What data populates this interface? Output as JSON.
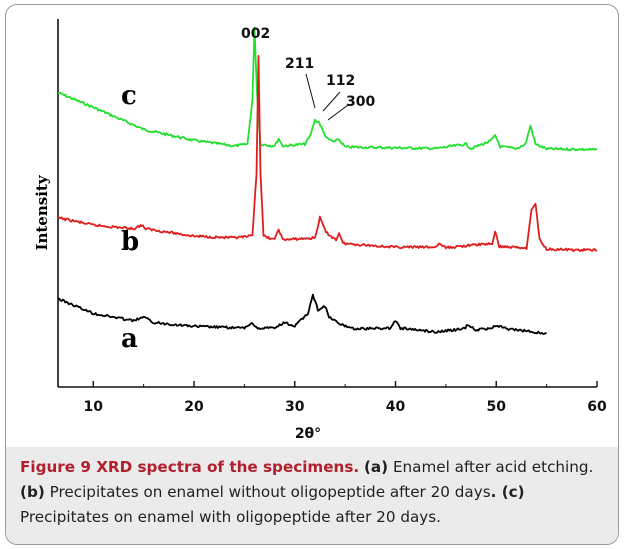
{
  "chart_data": {
    "type": "line",
    "title": "",
    "xlabel": "2θ°",
    "ylabel": "Intensity",
    "xlim": [
      6.5,
      60
    ],
    "xticks": [
      "10",
      "20",
      "30",
      "40",
      "50",
      "60"
    ],
    "grid": false,
    "series": [
      {
        "name": "c",
        "color": "#22e02e",
        "points": [
          [
            6.5,
            0.8
          ],
          [
            10,
            0.76
          ],
          [
            15,
            0.7
          ],
          [
            20,
            0.67
          ],
          [
            24,
            0.655
          ],
          [
            25.3,
            0.66
          ],
          [
            25.8,
            0.78
          ],
          [
            26.0,
            0.98
          ],
          [
            26.25,
            0.8
          ],
          [
            26.6,
            0.66
          ],
          [
            28,
            0.655
          ],
          [
            28.4,
            0.675
          ],
          [
            28.8,
            0.655
          ],
          [
            31,
            0.66
          ],
          [
            31.5,
            0.68
          ],
          [
            32.0,
            0.725
          ],
          [
            32.4,
            0.72
          ],
          [
            32.9,
            0.69
          ],
          [
            33.2,
            0.675
          ],
          [
            34.0,
            0.665
          ],
          [
            34.3,
            0.675
          ],
          [
            35,
            0.652
          ],
          [
            40,
            0.65
          ],
          [
            44,
            0.648
          ],
          [
            47,
            0.66
          ],
          [
            47.5,
            0.648
          ],
          [
            49.4,
            0.668
          ],
          [
            49.9,
            0.683
          ],
          [
            50.4,
            0.653
          ],
          [
            52,
            0.648
          ],
          [
            52.9,
            0.66
          ],
          [
            53.4,
            0.71
          ],
          [
            53.9,
            0.66
          ],
          [
            55,
            0.647
          ],
          [
            60,
            0.645
          ]
        ]
      },
      {
        "name": "b",
        "color": "#e01d1d",
        "points": [
          [
            6.5,
            0.46
          ],
          [
            10,
            0.44
          ],
          [
            14,
            0.43
          ],
          [
            14.8,
            0.44
          ],
          [
            15.2,
            0.43
          ],
          [
            20,
            0.41
          ],
          [
            24,
            0.405
          ],
          [
            25.8,
            0.41
          ],
          [
            26.2,
            0.58
          ],
          [
            26.4,
            0.9
          ],
          [
            26.6,
            0.58
          ],
          [
            26.9,
            0.41
          ],
          [
            28,
            0.4
          ],
          [
            28.4,
            0.43
          ],
          [
            28.8,
            0.4
          ],
          [
            32,
            0.405
          ],
          [
            32.5,
            0.46
          ],
          [
            33.1,
            0.42
          ],
          [
            34.1,
            0.4
          ],
          [
            34.4,
            0.42
          ],
          [
            34.8,
            0.39
          ],
          [
            40,
            0.38
          ],
          [
            44,
            0.38
          ],
          [
            44.3,
            0.39
          ],
          [
            45,
            0.378
          ],
          [
            47,
            0.384
          ],
          [
            49.6,
            0.39
          ],
          [
            49.9,
            0.42
          ],
          [
            50.3,
            0.382
          ],
          [
            53,
            0.378
          ],
          [
            53.5,
            0.48
          ],
          [
            53.9,
            0.5
          ],
          [
            54.3,
            0.4
          ],
          [
            55,
            0.375
          ],
          [
            58,
            0.372
          ],
          [
            60,
            0.372
          ]
        ]
      },
      {
        "name": "a",
        "color": "#000000",
        "points": [
          [
            6.5,
            0.24
          ],
          [
            10,
            0.2
          ],
          [
            14,
            0.18
          ],
          [
            15,
            0.19
          ],
          [
            16,
            0.175
          ],
          [
            20,
            0.165
          ],
          [
            25,
            0.16
          ],
          [
            25.8,
            0.175
          ],
          [
            26.2,
            0.16
          ],
          [
            28,
            0.16
          ],
          [
            29,
            0.175
          ],
          [
            30,
            0.165
          ],
          [
            31.3,
            0.2
          ],
          [
            31.8,
            0.25
          ],
          [
            32.3,
            0.21
          ],
          [
            33,
            0.22
          ],
          [
            33.4,
            0.19
          ],
          [
            34.5,
            0.17
          ],
          [
            36,
            0.158
          ],
          [
            39.5,
            0.16
          ],
          [
            40,
            0.18
          ],
          [
            40.5,
            0.16
          ],
          [
            44,
            0.15
          ],
          [
            46.8,
            0.158
          ],
          [
            47.2,
            0.17
          ],
          [
            48,
            0.155
          ],
          [
            49.5,
            0.16
          ],
          [
            50,
            0.168
          ],
          [
            51,
            0.158
          ],
          [
            53,
            0.152
          ],
          [
            55,
            0.145
          ]
        ]
      }
    ],
    "annotations": [
      "002",
      "211",
      "112",
      "300"
    ]
  },
  "caption": {
    "figure_label": "Figure 9 XRD spectra of the specimens.",
    "items": [
      {
        "key": "(a)",
        "text": " Enamel after acid etching. "
      },
      {
        "key": "(b)",
        "text": " Precipitates on enamel without oligopeptide after 20 days"
      },
      {
        "key": ". (c)",
        "text": " Precipitates on enamel with oligopeptide after 20 days."
      }
    ]
  }
}
